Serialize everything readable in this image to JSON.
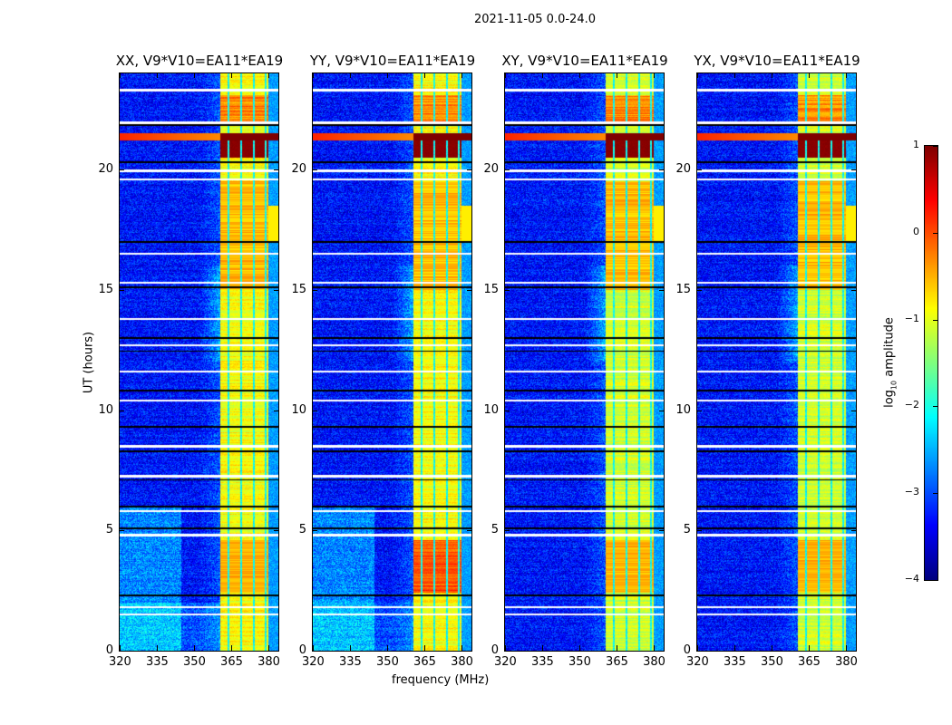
{
  "chart_data": {
    "type": "heatmap",
    "title": "2021-11-05 0.0-24.0",
    "xlabel": "frequency (MHz)",
    "ylabel": "UT (hours)",
    "xlim": [
      320,
      384
    ],
    "ylim": [
      0,
      24
    ],
    "xticks": [
      320,
      335,
      350,
      365,
      380
    ],
    "yticks": [
      0,
      5,
      10,
      15,
      20
    ],
    "panels": [
      {
        "title": "XX, V9*V10=EA11*EA19",
        "pol": "XX"
      },
      {
        "title": "YY, V9*V10=EA11*EA19",
        "pol": "YY"
      },
      {
        "title": "XY, V9*V10=EA11*EA19",
        "pol": "XY"
      },
      {
        "title": "YX, V9*V10=EA11*EA19",
        "pol": "YX"
      }
    ],
    "colorbar": {
      "label": "log10 amplitude",
      "label_main": "log",
      "label_sub": "10",
      "label_rest": " amplitude",
      "range": [
        -4,
        1
      ],
      "ticks": [
        1,
        0,
        -1,
        -2,
        -3,
        -4
      ],
      "tick_labels": [
        "1",
        "0",
        "−1",
        "−2",
        "−3",
        "−4"
      ],
      "colormap": "jet"
    },
    "background_level": -3.3,
    "rfi_band_mhz": [
      360.5,
      380
    ],
    "rfi_band_level": -0.9,
    "strong_rfi_hours": [
      20.5,
      21.5
    ],
    "flagged_hours_white": [
      23.3,
      21.95,
      19.95,
      19.6,
      16.5,
      15.3,
      13.8,
      12.7,
      11.6,
      10.4,
      8.5,
      7.25,
      5.8,
      4.8,
      1.8,
      1.5
    ],
    "flagged_hours_black": [
      21.85,
      20.3,
      17.0,
      15.1,
      13.0,
      12.45,
      10.8,
      9.3,
      8.3,
      7.1,
      6.0,
      5.1,
      2.3
    ]
  }
}
